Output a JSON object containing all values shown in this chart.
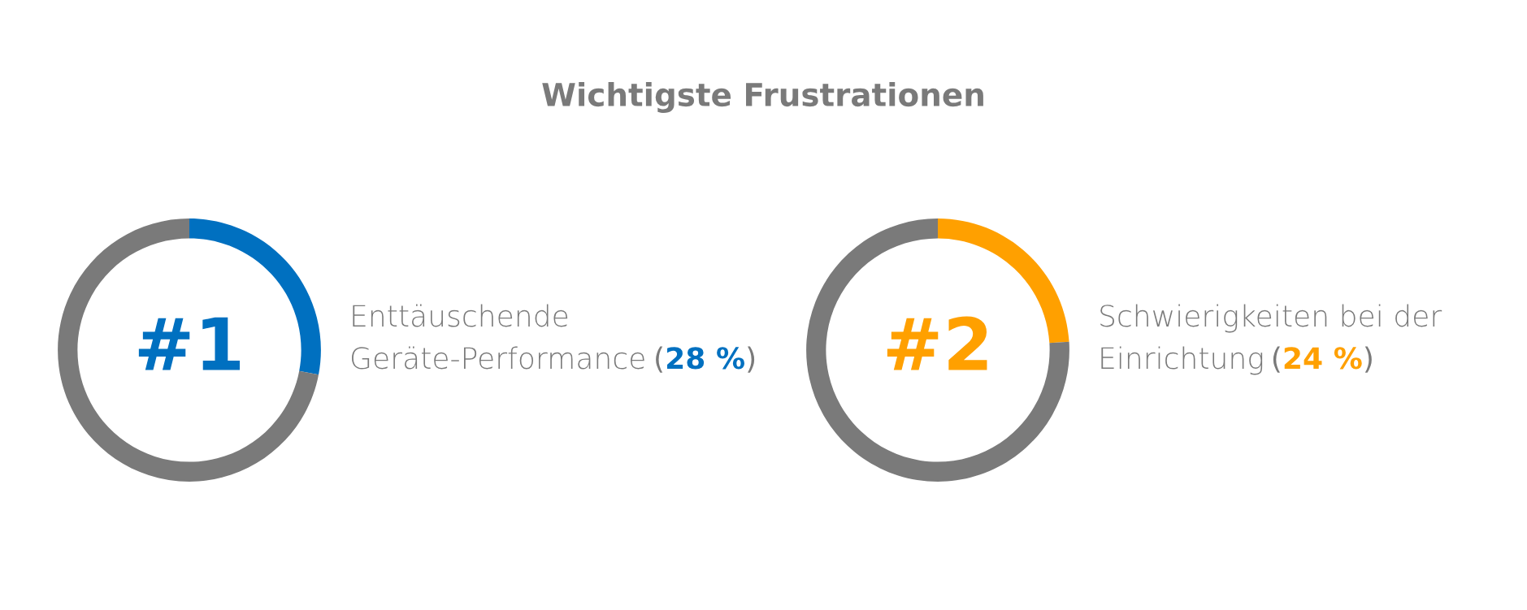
{
  "chart_data": [
    {
      "type": "donut",
      "title": "Wichtigste Frustrationen",
      "categories": [
        "Enttäuschende\nGeräte-Performance",
        null
      ],
      "values": [
        28,
        72
      ],
      "colors": [
        "#0070c0",
        "#7a7a7a"
      ],
      "value_labels": [
        "(28 %)",
        null
      ],
      "annotations": [
        "#1"
      ]
    },
    {
      "type": "donut",
      "categories": [
        "Schwierigkeiten bei der\nEinrichtung",
        null
      ],
      "values": [
        24,
        76
      ],
      "colors": [
        "#ffa000",
        "#7a7a7a"
      ],
      "value_labels": [
        "(24 %)",
        null
      ],
      "annotations": [
        "#2"
      ]
    }
  ]
}
